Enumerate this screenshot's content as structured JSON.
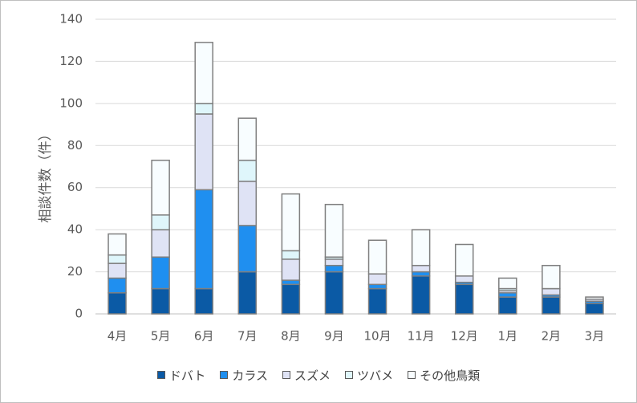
{
  "chart_data": {
    "type": "bar",
    "stacked": true,
    "ylabel": "相談件数（件）",
    "ylim": [
      0,
      140
    ],
    "yticks": [
      0,
      20,
      40,
      60,
      80,
      100,
      120,
      140
    ],
    "grid": true,
    "legend_position": "bottom",
    "categories": [
      "4月",
      "5月",
      "6月",
      "7月",
      "8月",
      "9月",
      "10月",
      "11月",
      "12月",
      "1月",
      "2月",
      "3月"
    ],
    "series": [
      {
        "name": "ドバト",
        "color": "#0b5aa5",
        "values": [
          10,
          12,
          12,
          20,
          14,
          20,
          12,
          18,
          14,
          8,
          8,
          5
        ]
      },
      {
        "name": "カラス",
        "color": "#1f8ff0",
        "values": [
          7,
          15,
          47,
          22,
          2,
          3,
          2,
          2,
          1,
          2,
          1,
          1
        ]
      },
      {
        "name": "スズメ",
        "color": "#dfe3f5",
        "values": [
          7,
          13,
          36,
          21,
          10,
          3,
          5,
          3,
          3,
          1,
          3,
          1
        ]
      },
      {
        "name": "ツバメ",
        "color": "#dff6fb",
        "values": [
          4,
          7,
          5,
          10,
          4,
          1,
          0,
          0,
          0,
          1,
          0,
          0
        ]
      },
      {
        "name": "その他鳥類",
        "color": "#f8fdff",
        "values": [
          10,
          26,
          29,
          20,
          27,
          25,
          16,
          17,
          15,
          5,
          11,
          1
        ]
      }
    ]
  }
}
